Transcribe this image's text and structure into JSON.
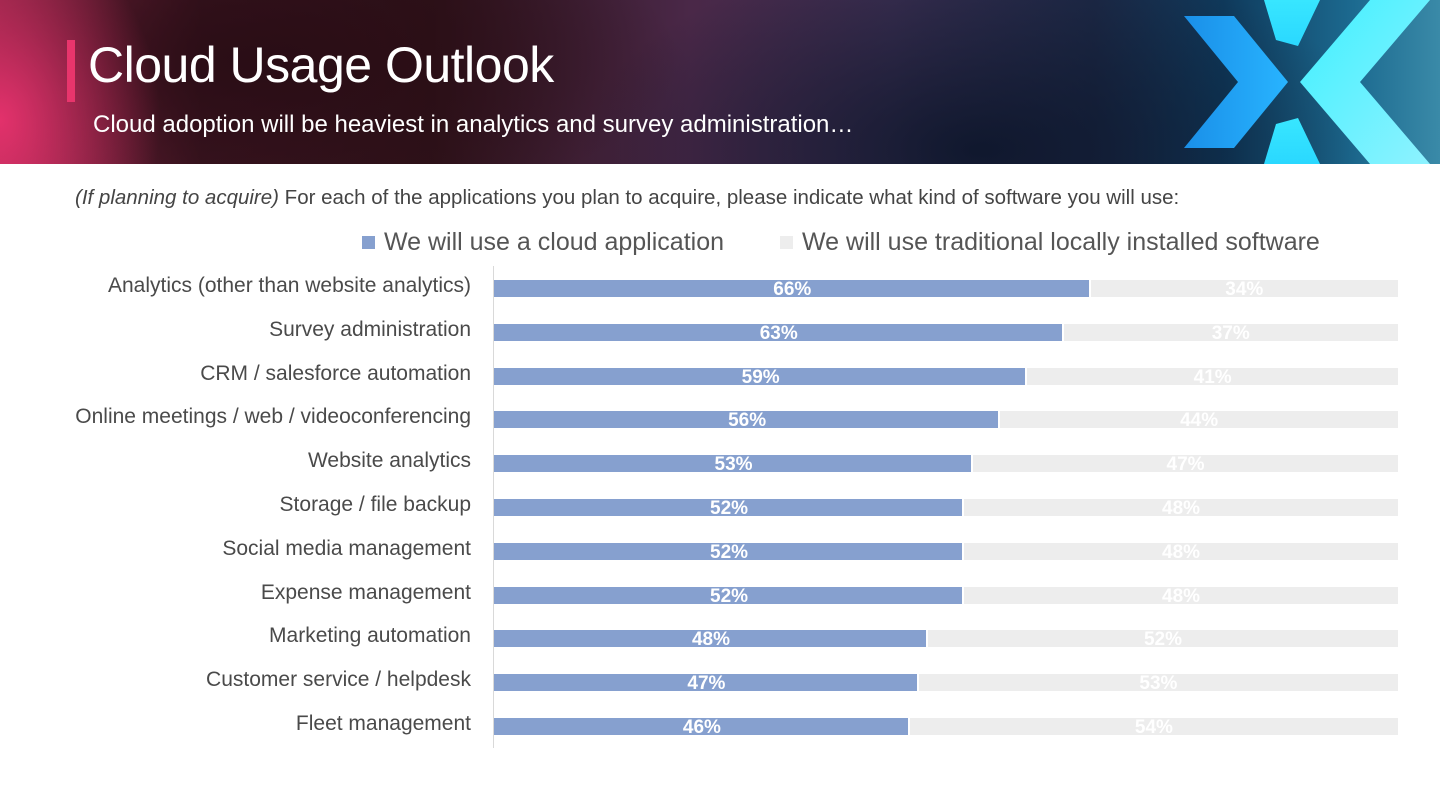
{
  "header": {
    "title": "Cloud Usage Outlook",
    "subtitle": "Cloud adoption will be heaviest in analytics and survey administration…",
    "logo_icon": "brand-x-chevron-logo"
  },
  "question": {
    "italic_prefix": "(If planning to acquire)",
    "text": " For each of the applications you plan to acquire, please indicate what kind of software you will use:"
  },
  "colors": {
    "cloud": "#86a0cf",
    "local": "#ededed",
    "accent": "#e8356c"
  },
  "chart_data": {
    "type": "bar",
    "orientation": "horizontal",
    "stacked": true,
    "percent_stacked": true,
    "title": "",
    "xlabel": "",
    "ylabel": "",
    "xlim": [
      0,
      100
    ],
    "grid": false,
    "legend_position": "top",
    "categories": [
      "Analytics (other than website analytics)",
      "Survey administration",
      "CRM / salesforce automation",
      "Online meetings / web / videoconferencing",
      "Website analytics",
      "Storage / file backup",
      "Social media management",
      "Expense management",
      "Marketing automation",
      "Customer service / helpdesk",
      "Fleet management"
    ],
    "series": [
      {
        "name": "We will use a cloud application",
        "color": "#86a0cf",
        "values": [
          66,
          63,
          59,
          56,
          53,
          52,
          52,
          52,
          48,
          47,
          46
        ],
        "labels": [
          "66%",
          "63%",
          "59%",
          "56%",
          "53%",
          "52%",
          "52%",
          "52%",
          "48%",
          "47%",
          "46%"
        ]
      },
      {
        "name": "We will use traditional locally installed software",
        "color": "#ededed",
        "values": [
          34,
          37,
          41,
          44,
          47,
          48,
          48,
          48,
          52,
          53,
          54
        ],
        "labels": [
          "34%",
          "37%",
          "41%",
          "44%",
          "47%",
          "48%",
          "48%",
          "48%",
          "52%",
          "53%",
          "54%"
        ]
      }
    ]
  }
}
